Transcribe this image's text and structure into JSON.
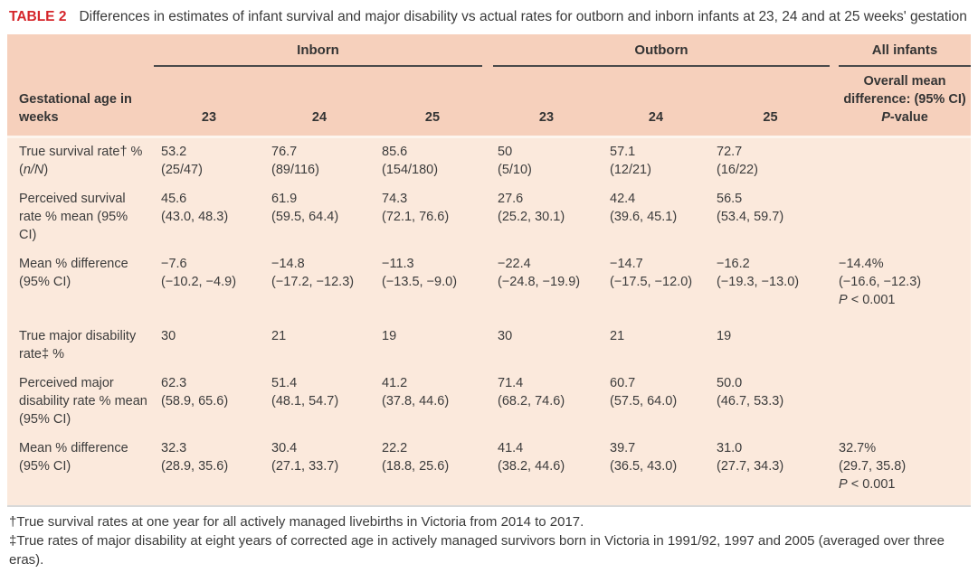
{
  "title": {
    "tag": "TABLE 2",
    "text": "Differences in estimates of infant survival and major disability vs actual rates for outborn and inborn infants at 23, 24 and at 25 weeks' gestation"
  },
  "colors": {
    "accent_red": "#d5262b",
    "header_bg": "#f6d0bc",
    "body_bg": "#fbe9dc",
    "group_rule": "#4a4a4a",
    "bottom_border": "#d8d8d8"
  },
  "table": {
    "group_headers": {
      "inborn": "Inborn",
      "outborn": "Outborn",
      "all_infants": "All infants"
    },
    "header": {
      "row_label": "Gestational age in weeks",
      "cols": [
        "23",
        "24",
        "25",
        "23",
        "24",
        "25"
      ],
      "all_sub": {
        "pre": "Overall mean difference: (95% CI) ",
        "italic": "P",
        "post": "-value"
      }
    },
    "rows": [
      {
        "label": {
          "pre": "True survival rate† % (",
          "italic": "n/N",
          "post": ")"
        },
        "cells": [
          {
            "value": "53.2",
            "ci": "(25/47)"
          },
          {
            "value": "76.7",
            "ci": "(89/116)"
          },
          {
            "value": "85.6",
            "ci": "(154/180)"
          },
          {
            "value": "50",
            "ci": "(5/10)"
          },
          {
            "value": "57.1",
            "ci": "(12/21)"
          },
          {
            "value": "72.7",
            "ci": "(16/22)"
          },
          {}
        ]
      },
      {
        "label": {
          "pre": "Perceived survival rate % mean (95% CI)"
        },
        "cells": [
          {
            "value": "45.6",
            "ci": "(43.0, 48.3)"
          },
          {
            "value": "61.9",
            "ci": "(59.5, 64.4)"
          },
          {
            "value": "74.3",
            "ci": "(72.1, 76.6)"
          },
          {
            "value": "27.6",
            "ci": "(25.2, 30.1)"
          },
          {
            "value": "42.4",
            "ci": "(39.6, 45.1)"
          },
          {
            "value": "56.5",
            "ci": "(53.4, 59.7)"
          },
          {}
        ]
      },
      {
        "label": {
          "pre": "Mean % difference (95% CI)"
        },
        "cells": [
          {
            "value": "−7.6",
            "ci": "(−10.2, −4.9)"
          },
          {
            "value": "−14.8",
            "ci": "(−17.2, −12.3)"
          },
          {
            "value": "−11.3",
            "ci": "(−13.5, −9.0)"
          },
          {
            "value": "−22.4",
            "ci": "(−24.8, −19.9)"
          },
          {
            "value": "−14.7",
            "ci": "(−17.5, −12.0)"
          },
          {
            "value": "−16.2",
            "ci": "(−19.3, −13.0)"
          },
          {
            "value": "−14.4%",
            "ci": "(−16.6, −12.3)",
            "p_italic": "P",
            "p_rest": " < 0.001"
          }
        ]
      },
      {
        "label": {
          "pre": "True major disability rate‡ %"
        },
        "cells": [
          {
            "value": "30"
          },
          {
            "value": "21"
          },
          {
            "value": "19"
          },
          {
            "value": "30"
          },
          {
            "value": "21"
          },
          {
            "value": "19"
          },
          {}
        ]
      },
      {
        "label": {
          "pre": "Perceived major disability rate % mean (95% CI)"
        },
        "cells": [
          {
            "value": "62.3",
            "ci": "(58.9, 65.6)"
          },
          {
            "value": "51.4",
            "ci": "(48.1, 54.7)"
          },
          {
            "value": "41.2",
            "ci": "(37.8, 44.6)"
          },
          {
            "value": "71.4",
            "ci": "(68.2, 74.6)"
          },
          {
            "value": "60.7",
            "ci": "(57.5, 64.0)"
          },
          {
            "value": "50.0",
            "ci": "(46.7, 53.3)"
          },
          {}
        ]
      },
      {
        "label": {
          "pre": "Mean % difference (95% CI)"
        },
        "cells": [
          {
            "value": "32.3",
            "ci": "(28.9, 35.6)"
          },
          {
            "value": "30.4",
            "ci": "(27.1, 33.7)"
          },
          {
            "value": "22.2",
            "ci": "(18.8, 25.6)"
          },
          {
            "value": "41.4",
            "ci": "(38.2, 44.6)"
          },
          {
            "value": "39.7",
            "ci": "(36.5, 43.0)"
          },
          {
            "value": "31.0",
            "ci": "(27.7, 34.3)"
          },
          {
            "value": "32.7%",
            "ci": "(29.7, 35.8)",
            "p_italic": "P",
            "p_rest": " < 0.001"
          }
        ]
      }
    ]
  },
  "footnotes": [
    "†True survival rates at one year for all actively managed livebirths in Victoria from 2014 to 2017.",
    "‡True rates of major disability at eight years of corrected age in actively managed survivors born in Victoria in 1991/92, 1997 and 2005 (averaged over three eras)."
  ]
}
